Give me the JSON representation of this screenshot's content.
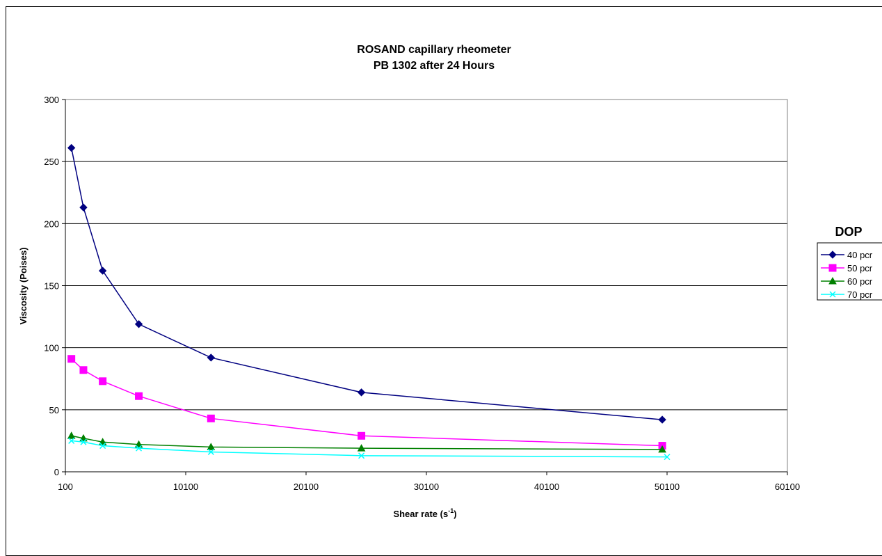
{
  "chart_data": {
    "type": "line",
    "title": "ROSAND capillary rheometer",
    "subtitle": "PB 1302  after 24 Hours",
    "xlabel": "Shear rate  (s",
    "xlabel_sup": "-1",
    "xlabel_end": ")",
    "ylabel": "Viscosity (Poises)",
    "xlim": [
      100,
      60100
    ],
    "ylim": [
      0,
      300
    ],
    "x_ticks": [
      100,
      10100,
      20100,
      30100,
      40100,
      50100,
      60100
    ],
    "y_ticks": [
      0,
      50,
      100,
      150,
      200,
      250,
      300
    ],
    "grid": "horizontal",
    "legend": {
      "title": "DOP",
      "placement": "right"
    },
    "series": [
      {
        "name": "40 pcr",
        "color": "#000080",
        "marker": "diamond",
        "x": [
          600,
          1600,
          3200,
          6200,
          12200,
          24700,
          49700
        ],
        "y": [
          261,
          213,
          162,
          119,
          92,
          64,
          42
        ]
      },
      {
        "name": "50 pcr",
        "color": "#FF00FF",
        "marker": "square",
        "x": [
          600,
          1600,
          3200,
          6200,
          12200,
          24700,
          49700
        ],
        "y": [
          91,
          82,
          73,
          61,
          43,
          29,
          21
        ]
      },
      {
        "name": "60 pcr",
        "color": "#008000",
        "marker": "triangle",
        "x": [
          600,
          1600,
          3200,
          6200,
          12200,
          24700,
          49700
        ],
        "y": [
          29,
          27,
          24,
          22,
          20,
          19,
          18
        ]
      },
      {
        "name": "70 pcr",
        "color": "#00FFFF",
        "marker": "x",
        "x": [
          600,
          1600,
          3200,
          6200,
          12200,
          24700,
          50100
        ],
        "y": [
          25,
          24,
          21,
          19,
          16,
          13,
          12
        ]
      }
    ]
  }
}
